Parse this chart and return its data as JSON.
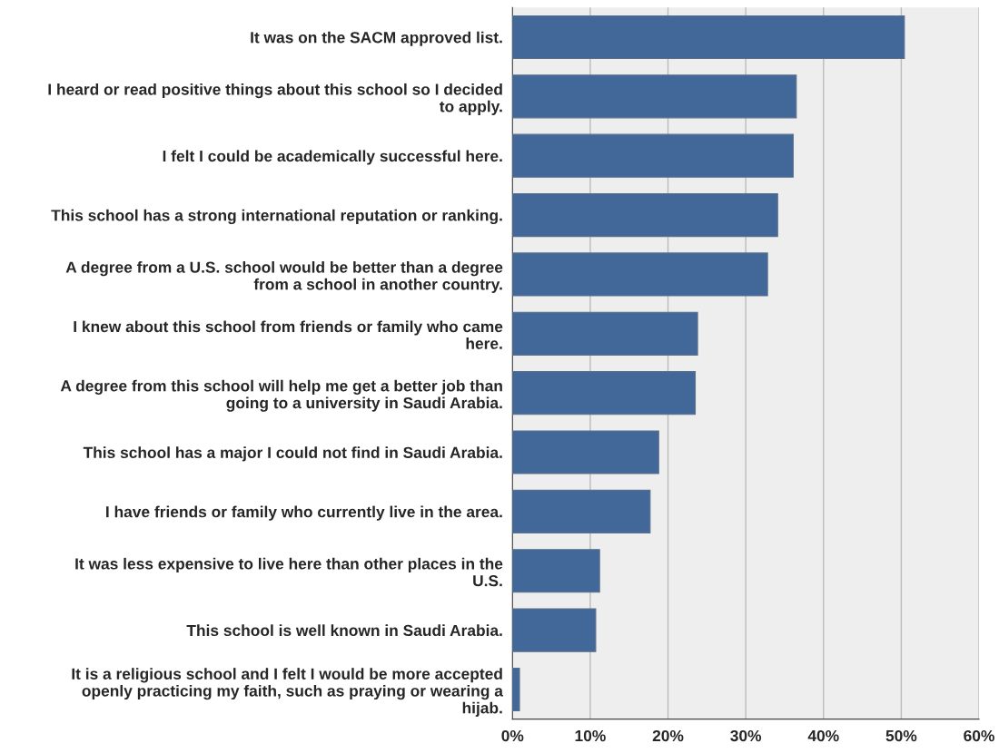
{
  "chart_data": {
    "type": "bar",
    "orientation": "horizontal",
    "categories": [
      "It was on the SACM approved list.",
      "I heard or read positive things about this school so I decided\nto apply.",
      "I felt I could be academically successful here.",
      "This school has a strong international reputation or ranking.",
      "A degree from a U.S. school would be better than a degree\nfrom a school in another country.",
      "I knew about this school from friends or family who came\nhere.",
      "A degree from this school will help me get a better job than\ngoing to a university in Saudi Arabia.",
      "This school has a major I could not find in Saudi Arabia.",
      "I have friends or family who currently live in the area.",
      "It was less expensive to live here than other places in the\nU.S.",
      "This school is well known in Saudi Arabia.",
      "It is a religious school and I felt I would be more accepted\nopenly practicing my faith, such as praying or wearing a\nhijab."
    ],
    "values": [
      50.4,
      36.5,
      36.1,
      34.1,
      32.8,
      23.8,
      23.5,
      18.8,
      17.7,
      11.2,
      10.7,
      0.9
    ],
    "color": "#42689a",
    "xlim": [
      0,
      60
    ],
    "xticks": [
      {
        "value": 0,
        "label": "0%"
      },
      {
        "value": 10,
        "label": "10%"
      },
      {
        "value": 20,
        "label": "20%"
      },
      {
        "value": 30,
        "label": "30%"
      },
      {
        "value": 40,
        "label": "40%"
      },
      {
        "value": 50,
        "label": "50%"
      },
      {
        "value": 60,
        "label": "60%"
      }
    ],
    "grid": "x",
    "legend": false
  }
}
